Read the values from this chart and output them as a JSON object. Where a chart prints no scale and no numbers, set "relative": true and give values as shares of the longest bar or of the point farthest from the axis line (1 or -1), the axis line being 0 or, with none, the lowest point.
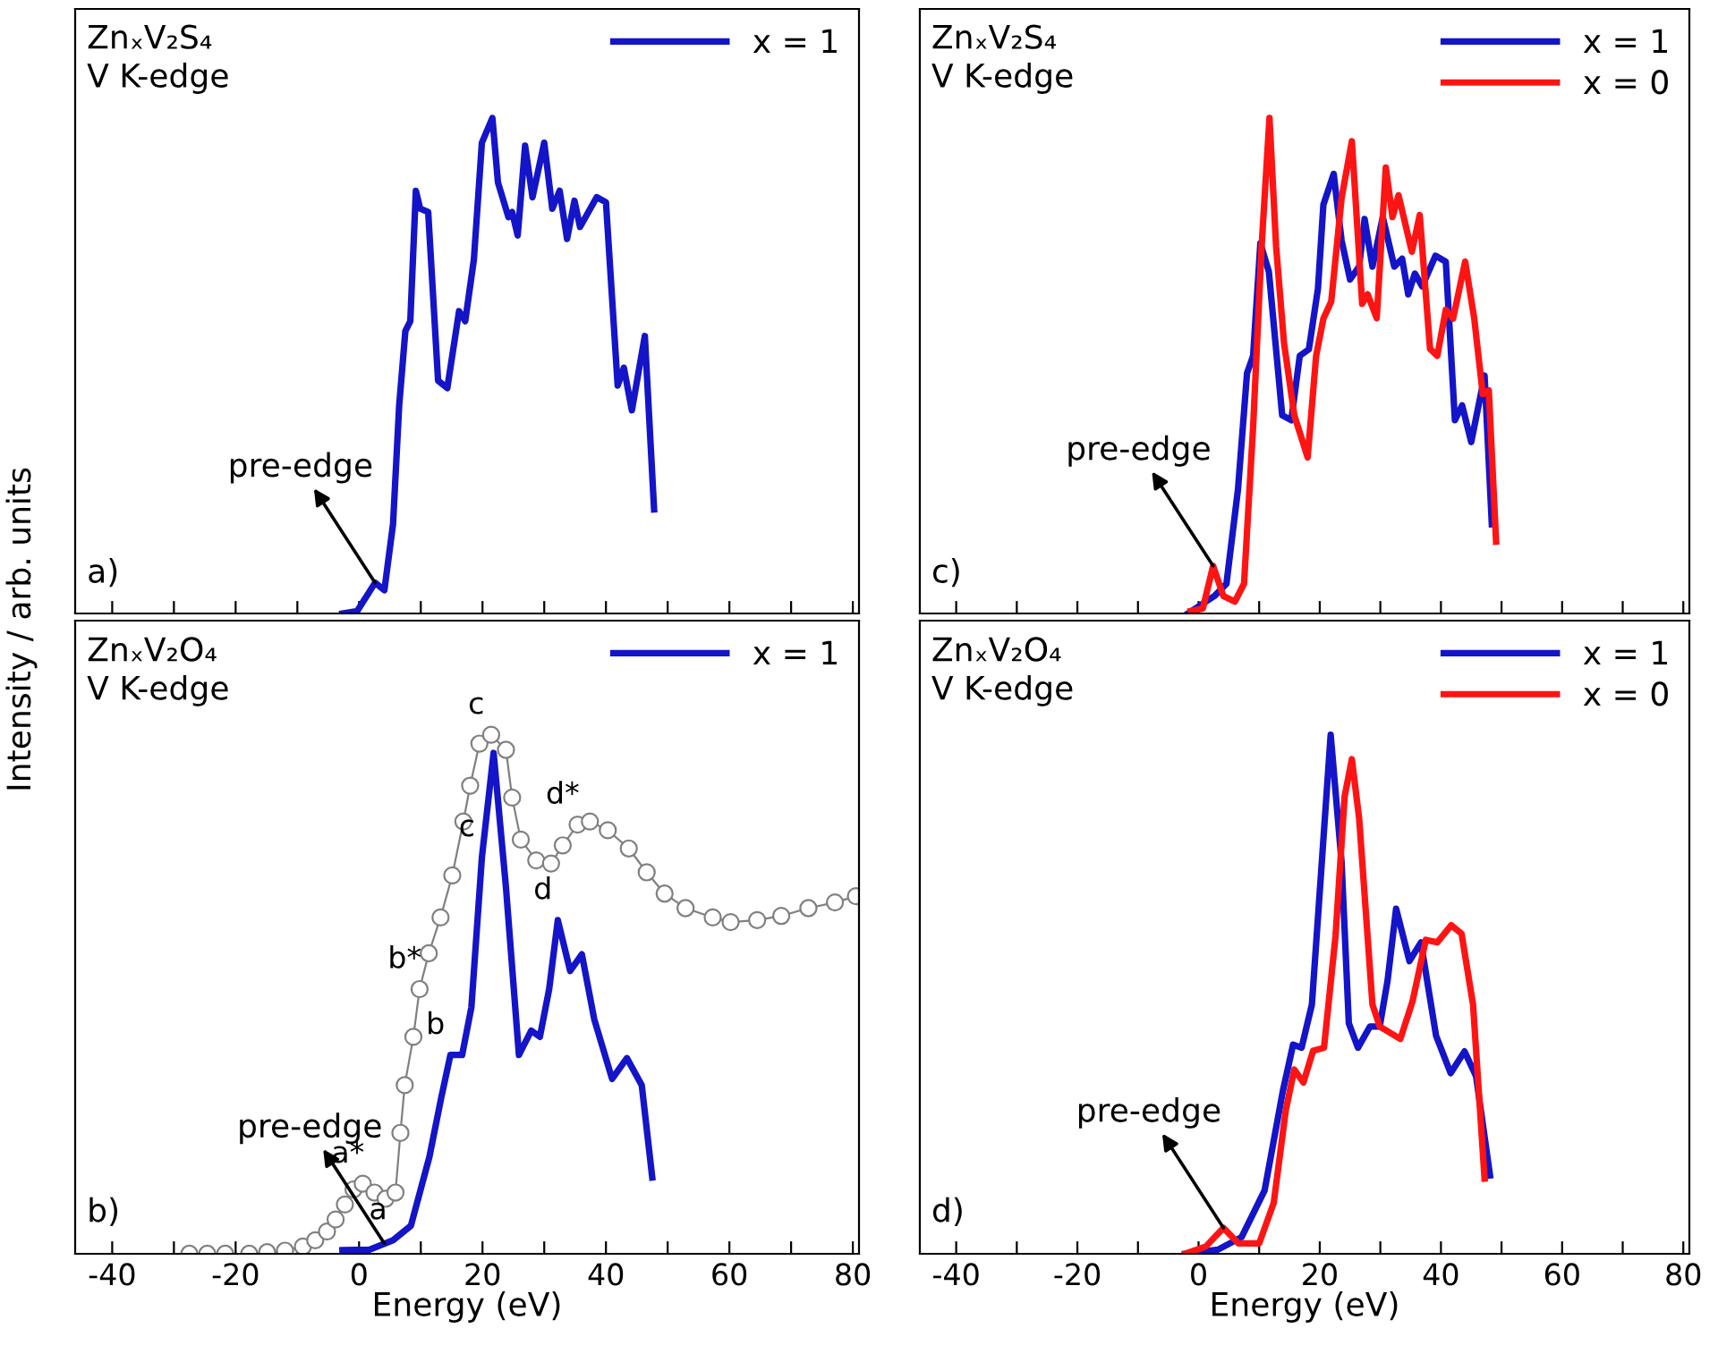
{
  "chart_data": [
    {
      "type": "line",
      "title": "ZnₓV₂S₄",
      "subtitle": "V K-edge",
      "ylabel": "Intensity / arb. units",
      "relative": true,
      "xlim": [
        -46,
        81
      ],
      "xticks": [
        -40,
        {
          "value": -30,
          "label": null
        },
        -20,
        {
          "value": -10,
          "label": null
        },
        0,
        {
          "value": 10,
          "label": null
        },
        20,
        {
          "value": 30,
          "label": null
        },
        40,
        {
          "value": 50,
          "label": null
        },
        60,
        {
          "value": 70,
          "label": null
        },
        80
      ],
      "tick_labels": false,
      "legend": "top right",
      "grid": false,
      "annotations": [
        "a)",
        {
          "text": "pre-edge",
          "x": 2.6,
          "y": 0.062
        }
      ],
      "series": [
        {
          "name": "x = 1",
          "color": "#1414c8",
          "marker": "none",
          "line_style": "solid",
          "x": [
            -2.7,
            -0.3,
            2.6,
            4.1,
            5.5,
            6.5,
            7.5,
            8.3,
            9.2,
            9.9,
            11.2,
            12.8,
            14.3,
            16.2,
            17.2,
            18.6,
            19.9,
            21.6,
            22.5,
            24.2,
            24.8,
            25.7,
            26.9,
            28.1,
            30.0,
            31.3,
            32.5,
            33.7,
            34.9,
            35.8,
            38.5,
            40.0,
            41.9,
            42.9,
            44.2,
            46.3,
            47.8
          ],
          "values": [
            0,
            0.005,
            0.062,
            0.047,
            0.18,
            0.42,
            0.57,
            0.59,
            0.853,
            0.817,
            0.81,
            0.47,
            0.455,
            0.61,
            0.59,
            0.714,
            0.95,
            1.0,
            0.87,
            0.8,
            0.81,
            0.763,
            0.944,
            0.84,
            0.95,
            0.817,
            0.853,
            0.756,
            0.833,
            0.78,
            0.84,
            0.83,
            0.46,
            0.496,
            0.41,
            0.56,
            0.21
          ]
        }
      ]
    },
    {
      "type": "line",
      "title": "ZnₓV₂S₄",
      "subtitle": "V K-edge",
      "relative": true,
      "xlim": [
        -46,
        81
      ],
      "xticks": [
        -40,
        {
          "value": -30,
          "label": null
        },
        -20,
        {
          "value": -10,
          "label": null
        },
        0,
        {
          "value": 10,
          "label": null
        },
        20,
        {
          "value": 30,
          "label": null
        },
        40,
        {
          "value": 50,
          "label": null
        },
        60,
        {
          "value": 70,
          "label": null
        },
        80
      ],
      "tick_labels": false,
      "legend": "top right",
      "grid": false,
      "annotations": [
        "c)",
        {
          "text": "pre-edge",
          "x": 2.4,
          "y": 0.096
        }
      ],
      "series": [
        {
          "name": "x = 1",
          "color": "#1414c8",
          "marker": "none",
          "line_style": "solid",
          "x": [
            -1.75,
            2.6,
            4.6,
            6.5,
            8.0,
            9.0,
            10.2,
            11.6,
            13.8,
            15.3,
            16.7,
            18.2,
            19.7,
            20.6,
            22.3,
            23.6,
            25.0,
            26.5,
            27.4,
            28.7,
            30.4,
            32.3,
            33.6,
            34.6,
            35.7,
            36.9,
            39.1,
            40.8,
            42.3,
            43.5,
            45.0,
            47.2,
            48.4
          ],
          "values": [
            0,
            0.035,
            0.06,
            0.25,
            0.485,
            0.52,
            0.747,
            0.69,
            0.4,
            0.39,
            0.52,
            0.533,
            0.655,
            0.825,
            0.887,
            0.753,
            0.674,
            0.7,
            0.796,
            0.7,
            0.8,
            0.7,
            0.716,
            0.644,
            0.686,
            0.66,
            0.722,
            0.71,
            0.39,
            0.42,
            0.346,
            0.48,
            0.18
          ]
        },
        {
          "name": "x = 0",
          "color": "#ff1414",
          "marker": "none",
          "line_style": "solid",
          "x": [
            -1.3,
            0.7,
            2.4,
            4.1,
            6.0,
            7.5,
            9.0,
            10.4,
            11.7,
            12.8,
            14.1,
            15.8,
            18.0,
            19.4,
            20.6,
            21.9,
            23.6,
            25.3,
            27.0,
            27.9,
            29.4,
            30.9,
            32.0,
            33.0,
            35.2,
            36.5,
            38.2,
            39.4,
            40.8,
            42.0,
            44.0,
            45.5,
            46.9,
            47.9,
            49.1
          ],
          "values": [
            0.005,
            0.01,
            0.096,
            0.035,
            0.024,
            0.06,
            0.376,
            0.74,
            1.0,
            0.74,
            0.546,
            0.4,
            0.315,
            0.52,
            0.595,
            0.63,
            0.838,
            0.953,
            0.625,
            0.644,
            0.596,
            0.9,
            0.8,
            0.844,
            0.73,
            0.804,
            0.534,
            0.52,
            0.613,
            0.595,
            0.71,
            0.595,
            0.443,
            0.45,
            0.145
          ]
        }
      ]
    },
    {
      "type": "line",
      "title": "ZnₓV₂O₄",
      "subtitle": "V K-edge",
      "xlabel": "Energy (eV)",
      "relative": true,
      "xlim": [
        -46,
        81
      ],
      "xticks": [
        -40,
        {
          "value": -30,
          "label": null
        },
        -20,
        {
          "value": -10,
          "label": null
        },
        0,
        {
          "value": 10,
          "label": null
        },
        20,
        {
          "value": 30,
          "label": null
        },
        40,
        {
          "value": 50,
          "label": null
        },
        60,
        {
          "value": 70,
          "label": null
        },
        80
      ],
      "tick_labels": "x",
      "legend": "top right",
      "grid": false,
      "annotations": [
        "b)",
        {
          "text": "pre-edge",
          "x": 4.1,
          "y": 0.02
        },
        {
          "text": "a",
          "x": 5.5,
          "y": 0.026
        },
        {
          "text": "b",
          "x": 14.8,
          "y": 0.383
        },
        {
          "text": "c",
          "x": 19.9,
          "y": 0.764
        },
        {
          "text": "d",
          "x": 32.2,
          "y": 0.643
        },
        {
          "text": "a*",
          "x": 0.6,
          "y": 0.135
        },
        {
          "text": "b*",
          "x": 9.8,
          "y": 0.51
        },
        {
          "text": "c",
          "x": 21.4,
          "y": 1.0
        },
        {
          "text": "d*",
          "x": 35.4,
          "y": 0.827
        }
      ],
      "series": [
        {
          "name": "x = 1",
          "color": "#1414c8",
          "marker": "none",
          "line_style": "solid",
          "x": [
            -2.7,
            1.7,
            5.5,
            8.4,
            11.4,
            13.3,
            14.8,
            16.7,
            18.2,
            19.9,
            21.8,
            23.8,
            25.9,
            27.9,
            29.3,
            30.8,
            32.2,
            34.2,
            36.1,
            38.1,
            41.0,
            43.4,
            45.8,
            47.5
          ],
          "values": [
            0.007,
            0.008,
            0.026,
            0.054,
            0.187,
            0.3,
            0.383,
            0.383,
            0.475,
            0.764,
            0.965,
            0.706,
            0.383,
            0.43,
            0.418,
            0.51,
            0.643,
            0.545,
            0.577,
            0.452,
            0.337,
            0.377,
            0.325,
            0.147
          ]
        },
        {
          "color": "#808080",
          "marker": "circle",
          "line_style": "solid",
          "x": [
            -27.5,
            -24.6,
            -21.7,
            -17.8,
            -14.9,
            -12.0,
            -9.1,
            -7.1,
            -5.2,
            -3.8,
            -2.3,
            -0.9,
            0.6,
            2.5,
            4.3,
            5.9,
            6.7,
            7.4,
            8.8,
            9.8,
            11.3,
            13.2,
            15.1,
            16.9,
            18.0,
            19.5,
            21.4,
            23.8,
            24.8,
            26.2,
            28.7,
            31.1,
            33.0,
            35.4,
            37.4,
            40.3,
            43.7,
            46.6,
            49.5,
            52.9,
            57.3,
            60.2,
            64.5,
            68.4,
            72.8,
            77.1,
            80.5
          ],
          "values": [
            0,
            0,
            0,
            0,
            0.003,
            0.006,
            0.014,
            0.026,
            0.043,
            0.066,
            0.095,
            0.124,
            0.135,
            0.118,
            0.106,
            0.118,
            0.233,
            0.325,
            0.418,
            0.51,
            0.579,
            0.648,
            0.729,
            0.833,
            0.902,
            0.983,
            1.0,
            0.971,
            0.879,
            0.798,
            0.758,
            0.752,
            0.787,
            0.827,
            0.833,
            0.816,
            0.781,
            0.735,
            0.694,
            0.666,
            0.648,
            0.639,
            0.643,
            0.651,
            0.666,
            0.677,
            0.689
          ]
        }
      ]
    },
    {
      "type": "line",
      "title": "ZnₓV₂O₄",
      "subtitle": "V K-edge",
      "xlabel": "Energy (eV)",
      "relative": true,
      "xlim": [
        -46,
        81
      ],
      "xticks": [
        -40,
        {
          "value": -30,
          "label": null
        },
        -20,
        {
          "value": -10,
          "label": null
        },
        0,
        {
          "value": 10,
          "label": null
        },
        20,
        {
          "value": 30,
          "label": null
        },
        40,
        {
          "value": 50,
          "label": null
        },
        60,
        {
          "value": 70,
          "label": null
        },
        80
      ],
      "tick_labels": "x",
      "legend": "top right",
      "grid": false,
      "annotations": [
        "d)",
        {
          "text": "pre-edge",
          "x": 4.1,
          "y": 0.05
        }
      ],
      "series": [
        {
          "name": "x = 1",
          "color": "#1414c8",
          "marker": "none",
          "line_style": "solid",
          "x": [
            -2.2,
            3.2,
            7.1,
            10.9,
            13.9,
            15.6,
            17.0,
            18.7,
            20.2,
            21.8,
            23.6,
            24.8,
            26.3,
            28.3,
            29.9,
            31.2,
            32.6,
            34.8,
            36.7,
            39.2,
            41.6,
            43.9,
            45.8,
            48.1
          ],
          "values": [
            0,
            0.008,
            0.032,
            0.122,
            0.313,
            0.403,
            0.397,
            0.48,
            0.731,
            1.0,
            0.755,
            0.444,
            0.397,
            0.438,
            0.438,
            0.527,
            0.665,
            0.564,
            0.6,
            0.42,
            0.348,
            0.39,
            0.342,
            0.151
          ]
        },
        {
          "name": "x = 0",
          "color": "#ff1414",
          "marker": "none",
          "line_style": "solid",
          "x": [
            -2.2,
            1.2,
            4.1,
            6.6,
            10.0,
            12.4,
            14.4,
            15.8,
            17.3,
            18.9,
            20.7,
            22.6,
            24.1,
            25.3,
            26.5,
            28.7,
            29.9,
            33.3,
            35.3,
            37.5,
            39.4,
            41.7,
            43.4,
            45.3,
            47.2
          ],
          "values": [
            0,
            0.014,
            0.05,
            0.02,
            0.02,
            0.098,
            0.277,
            0.355,
            0.33,
            0.391,
            0.397,
            0.612,
            0.881,
            0.953,
            0.839,
            0.48,
            0.438,
            0.414,
            0.486,
            0.605,
            0.6,
            0.633,
            0.617,
            0.48,
            0.145
          ]
        }
      ]
    }
  ]
}
